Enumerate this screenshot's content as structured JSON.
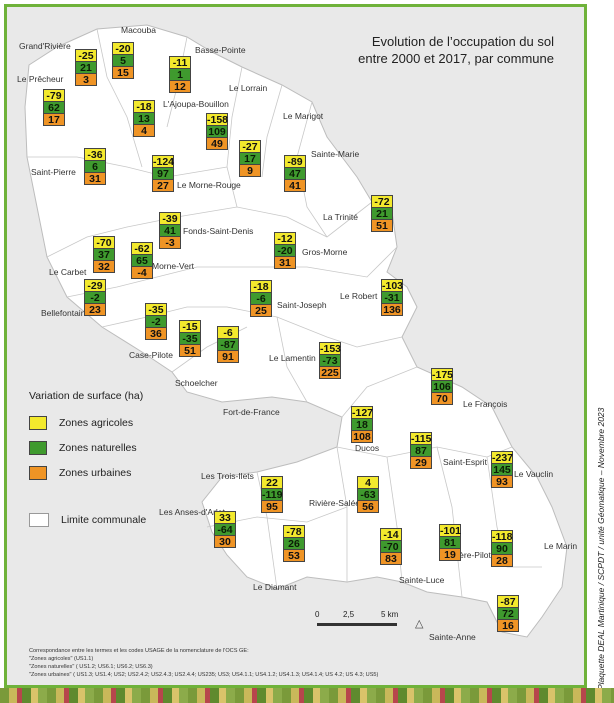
{
  "title_line1": "Evolution de l’occupation du sol",
  "title_line2": "entre 2000 et 2017, par commune",
  "colors": {
    "agricole": "#f3e92d",
    "naturelle": "#3f9a2e",
    "urbaine": "#ef9425",
    "frame": "#6fb23a",
    "land": "#ffffff",
    "background": "#e9e9e9"
  },
  "legend": {
    "title": "Variation de surface (ha)",
    "agricoles": "Zones agricoles",
    "naturelles": "Zones naturelles",
    "urbaines": "Zones urbaines",
    "limite": "Limite communale"
  },
  "communes": [
    {
      "name": "Grand'Rivière",
      "ag": null,
      "na": null,
      "ur": null
    },
    {
      "name": "Macouba",
      "ag": null,
      "na": null,
      "ur": null
    },
    {
      "name": "Basse-Pointe",
      "ag": null,
      "na": null,
      "ur": null
    },
    {
      "name": "Le Prêcheur",
      "ag": null,
      "na": null,
      "ur": null
    },
    {
      "name": "Le Lorrain",
      "ag": null,
      "na": null,
      "ur": null
    },
    {
      "name": "L'Ajoupa-Bouillon",
      "ag": null,
      "na": null,
      "ur": null
    },
    {
      "name": "Le Marigot",
      "ag": null,
      "na": null,
      "ur": null
    },
    {
      "name": "Sainte-Marie",
      "ag": null,
      "na": null,
      "ur": null
    },
    {
      "name": "Saint-Pierre",
      "ag": null,
      "na": null,
      "ur": null
    },
    {
      "name": "Le Morne-Rouge",
      "ag": null,
      "na": null,
      "ur": null
    },
    {
      "name": "La Trinité",
      "ag": null,
      "na": null,
      "ur": null
    },
    {
      "name": "Fonds-Saint-Denis",
      "ag": null,
      "na": null,
      "ur": null
    },
    {
      "name": "Gros-Morne",
      "ag": null,
      "na": null,
      "ur": null
    },
    {
      "name": "Morne-Vert",
      "ag": null,
      "na": null,
      "ur": null
    },
    {
      "name": "Le Carbet",
      "ag": null,
      "na": null,
      "ur": null
    },
    {
      "name": "Bellefontaine",
      "ag": null,
      "na": null,
      "ur": null
    },
    {
      "name": "Saint-Joseph",
      "ag": null,
      "na": null,
      "ur": null
    },
    {
      "name": "Le Robert",
      "ag": null,
      "na": null,
      "ur": null
    },
    {
      "name": "Case-Pilote",
      "ag": null,
      "na": null,
      "ur": null
    },
    {
      "name": "Le Lamentin",
      "ag": null,
      "na": null,
      "ur": null
    },
    {
      "name": "Schoelcher",
      "ag": null,
      "na": null,
      "ur": null
    },
    {
      "name": "Fort-de-France",
      "ag": null,
      "na": null,
      "ur": null
    },
    {
      "name": "Le François",
      "ag": null,
      "na": null,
      "ur": null
    },
    {
      "name": "Ducos",
      "ag": null,
      "na": null,
      "ur": null
    },
    {
      "name": "Saint-Esprit",
      "ag": null,
      "na": null,
      "ur": null
    },
    {
      "name": "Le Vauclin",
      "ag": null,
      "na": null,
      "ur": null
    },
    {
      "name": "Les Trois-Ilets",
      "ag": null,
      "na": null,
      "ur": null
    },
    {
      "name": "Rivière-Salée",
      "ag": null,
      "na": null,
      "ur": null
    },
    {
      "name": "Les Anses-d'Arlet",
      "ag": null,
      "na": null,
      "ur": null
    },
    {
      "name": "Le Marin",
      "ag": null,
      "na": null,
      "ur": null
    },
    {
      "name": "Rivière-Pilote",
      "ag": null,
      "na": null,
      "ur": null
    },
    {
      "name": "Le Diamant",
      "ag": null,
      "na": null,
      "ur": null
    },
    {
      "name": "Sainte-Luce",
      "ag": null,
      "na": null,
      "ur": null
    },
    {
      "name": "Sainte-Anne",
      "ag": null,
      "na": null,
      "ur": null
    }
  ],
  "stacks": [
    {
      "ag": "-25",
      "na": "21",
      "ur": "3"
    },
    {
      "ag": "-20",
      "na": "5",
      "ur": "15"
    },
    {
      "ag": "-11",
      "na": "1",
      "ur": "12"
    },
    {
      "ag": "-79",
      "na": "62",
      "ur": "17"
    },
    {
      "ag": "-18",
      "na": "13",
      "ur": "4"
    },
    {
      "ag": "-158",
      "na": "109",
      "ur": "49"
    },
    {
      "ag": "-27",
      "na": "17",
      "ur": "9"
    },
    {
      "ag": "-89",
      "na": "47",
      "ur": "41"
    },
    {
      "ag": "-36",
      "na": "6",
      "ur": "31"
    },
    {
      "ag": "-124",
      "na": "97",
      "ur": "27"
    },
    {
      "ag": "-72",
      "na": "21",
      "ur": "51"
    },
    {
      "ag": "-39",
      "na": "41",
      "ur": "-3"
    },
    {
      "ag": "-12",
      "na": "-20",
      "ur": "31"
    },
    {
      "ag": "-70",
      "na": "37",
      "ur": "32"
    },
    {
      "ag": "-62",
      "na": "65",
      "ur": "-4"
    },
    {
      "ag": "-29",
      "na": "-2",
      "ur": "23"
    },
    {
      "ag": "-18",
      "na": "-6",
      "ur": "25"
    },
    {
      "ag": "-103",
      "na": "-31",
      "ur": "136"
    },
    {
      "ag": "-35",
      "na": "-2",
      "ur": "36"
    },
    {
      "ag": "-15",
      "na": "-35",
      "ur": "51"
    },
    {
      "ag": "-6",
      "na": "-87",
      "ur": "91"
    },
    {
      "ag": "-153",
      "na": "-73",
      "ur": "225"
    },
    {
      "ag": "-175",
      "na": "106",
      "ur": "70"
    },
    {
      "ag": "-127",
      "na": "18",
      "ur": "108"
    },
    {
      "ag": "-115",
      "na": "87",
      "ur": "29"
    },
    {
      "ag": "-237",
      "na": "145",
      "ur": "93"
    },
    {
      "ag": "22",
      "na": "-119",
      "ur": "95"
    },
    {
      "ag": "4",
      "na": "-63",
      "ur": "56"
    },
    {
      "ag": "33",
      "na": "-64",
      "ur": "30"
    },
    {
      "ag": "-78",
      "na": "26",
      "ur": "53"
    },
    {
      "ag": "-14",
      "na": "-70",
      "ur": "83"
    },
    {
      "ag": "-101",
      "na": "81",
      "ur": "19"
    },
    {
      "ag": "-118",
      "na": "90",
      "ur": "28"
    },
    {
      "ag": "-87",
      "na": "72",
      "ur": "16"
    }
  ],
  "scale": {
    "n0": "0",
    "n1": "2,5",
    "n2": "5 km"
  },
  "footnote": {
    "l1": "Correspondance entre les termes et les codes USAGE  de la nomenclature de l'OCS GE:",
    "l2": "\"Zones agricoles\" (US1.1)",
    "l3": "\"Zones naturelles\" ( US1.2; US6.1; US6.2; US6.3)",
    "l4": "\"Zones urbaines\" ( US1.3; US1.4; US2; US2.4.2; US2.4.3; US2.4.4; US235; US3; US4.1.1; US4.1.2; US4.1.3; US4.1.4; US 4.2; US 4.3; US5)"
  },
  "credit": "Plaquette DEAL Martinique / SCPDT / unité Géomatique – Novembre 2023"
}
